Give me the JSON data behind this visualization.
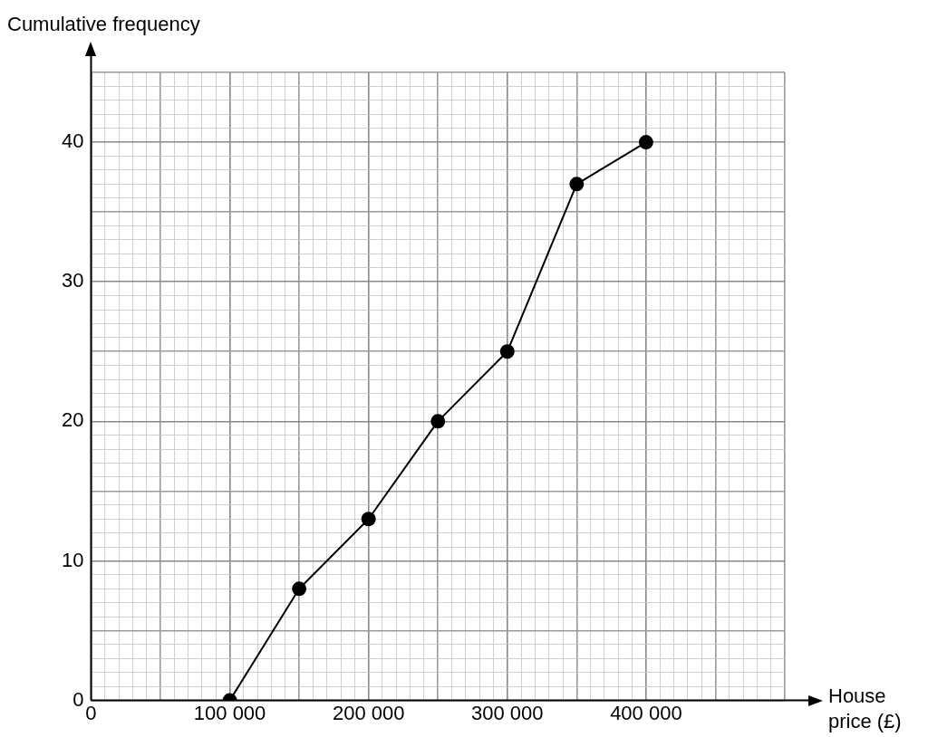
{
  "chart_data": {
    "type": "line",
    "xlabel": "House price (£)",
    "ylabel": "Cumulative frequency",
    "x": [
      100000,
      150000,
      200000,
      250000,
      300000,
      350000,
      400000
    ],
    "series": [
      {
        "color": "#000000",
        "values": [
          0,
          8,
          13,
          20,
          25,
          37,
          40
        ]
      }
    ],
    "xlim": [
      0,
      500000
    ],
    "ylim": [
      0,
      45
    ],
    "xticks": [
      0,
      {
        "value": 10000,
        "label": null
      },
      {
        "value": 20000,
        "label": null
      },
      {
        "value": 30000,
        "label": null
      },
      {
        "value": 40000,
        "label": null
      },
      {
        "value": 50000,
        "label": null
      },
      {
        "value": 60000,
        "label": null
      },
      {
        "value": 70000,
        "label": null
      },
      {
        "value": 80000,
        "label": null
      },
      {
        "value": 90000,
        "label": null
      },
      {
        "value": 100000,
        "label": "100 000"
      },
      {
        "value": 110000,
        "label": null
      },
      {
        "value": 120000,
        "label": null
      },
      {
        "value": 130000,
        "label": null
      },
      {
        "value": 140000,
        "label": null
      },
      {
        "value": 150000,
        "label": null
      },
      {
        "value": 160000,
        "label": null
      },
      {
        "value": 170000,
        "label": null
      },
      {
        "value": 180000,
        "label": null
      },
      {
        "value": 190000,
        "label": null
      },
      {
        "value": 200000,
        "label": "200 000"
      },
      {
        "value": 210000,
        "label": null
      },
      {
        "value": 220000,
        "label": null
      },
      {
        "value": 230000,
        "label": null
      },
      {
        "value": 240000,
        "label": null
      },
      {
        "value": 250000,
        "label": null
      },
      {
        "value": 260000,
        "label": null
      },
      {
        "value": 270000,
        "label": null
      },
      {
        "value": 280000,
        "label": null
      },
      {
        "value": 290000,
        "label": null
      },
      {
        "value": 300000,
        "label": "300 000"
      },
      {
        "value": 310000,
        "label": null
      },
      {
        "value": 320000,
        "label": null
      },
      {
        "value": 330000,
        "label": null
      },
      {
        "value": 340000,
        "label": null
      },
      {
        "value": 350000,
        "label": null
      },
      {
        "value": 360000,
        "label": null
      },
      {
        "value": 370000,
        "label": null
      },
      {
        "value": 380000,
        "label": null
      },
      {
        "value": 390000,
        "label": null
      },
      {
        "value": 400000,
        "label": "400 000"
      },
      {
        "value": 410000,
        "label": null
      },
      {
        "value": 420000,
        "label": null
      },
      {
        "value": 430000,
        "label": null
      },
      {
        "value": 440000,
        "label": null
      },
      {
        "value": 450000,
        "label": null
      },
      {
        "value": 460000,
        "label": null
      },
      {
        "value": 470000,
        "label": null
      },
      {
        "value": 480000,
        "label": null
      },
      {
        "value": 490000,
        "label": null
      },
      {
        "value": 500000,
        "label": null
      }
    ],
    "yticks": [
      0,
      {
        "value": 1,
        "label": null
      },
      {
        "value": 2,
        "label": null
      },
      {
        "value": 3,
        "label": null
      },
      {
        "value": 4,
        "label": null
      },
      {
        "value": 5,
        "label": null
      },
      {
        "value": 6,
        "label": null
      },
      {
        "value": 7,
        "label": null
      },
      {
        "value": 8,
        "label": null
      },
      {
        "value": 9,
        "label": null
      },
      10,
      {
        "value": 11,
        "label": null
      },
      {
        "value": 12,
        "label": null
      },
      {
        "value": 13,
        "label": null
      },
      {
        "value": 14,
        "label": null
      },
      {
        "value": 15,
        "label": null
      },
      {
        "value": 16,
        "label": null
      },
      {
        "value": 17,
        "label": null
      },
      {
        "value": 18,
        "label": null
      },
      {
        "value": 19,
        "label": null
      },
      20,
      {
        "value": 21,
        "label": null
      },
      {
        "value": 22,
        "label": null
      },
      {
        "value": 23,
        "label": null
      },
      {
        "value": 24,
        "label": null
      },
      {
        "value": 25,
        "label": null
      },
      {
        "value": 26,
        "label": null
      },
      {
        "value": 27,
        "label": null
      },
      {
        "value": 28,
        "label": null
      },
      {
        "value": 29,
        "label": null
      },
      30,
      {
        "value": 31,
        "label": null
      },
      {
        "value": 32,
        "label": null
      },
      {
        "value": 33,
        "label": null
      },
      {
        "value": 34,
        "label": null
      },
      {
        "value": 35,
        "label": null
      },
      {
        "value": 36,
        "label": null
      },
      {
        "value": 37,
        "label": null
      },
      {
        "value": 38,
        "label": null
      },
      {
        "value": 39,
        "label": null
      },
      40,
      {
        "value": 41,
        "label": null
      },
      {
        "value": 42,
        "label": null
      },
      {
        "value": 43,
        "label": null
      },
      {
        "value": 44,
        "label": null
      },
      {
        "value": 45,
        "label": null
      }
    ],
    "grid": true,
    "marker": "circle",
    "legend": false
  }
}
